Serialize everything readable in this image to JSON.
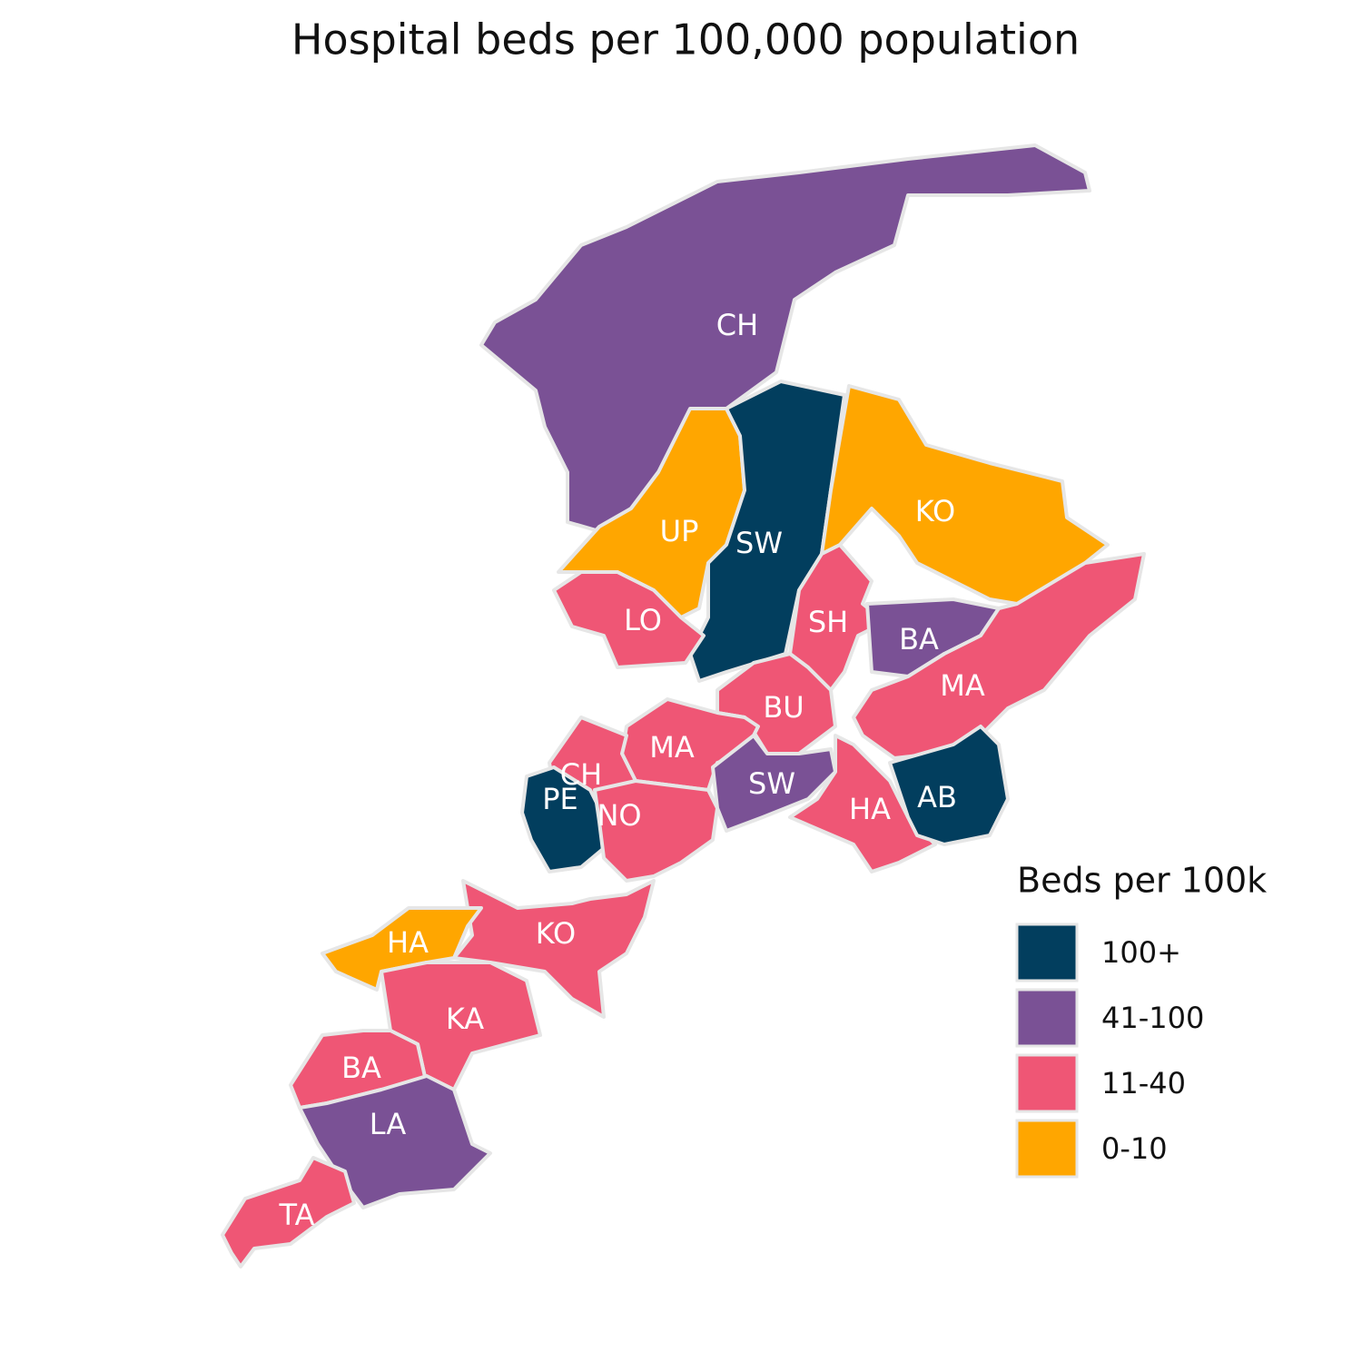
{
  "title": "Hospital beds per 100,000 population",
  "legend": {
    "title": "Beds per 100k",
    "items": [
      {
        "label": "100+",
        "color": "#023e5e"
      },
      {
        "label": "41-100",
        "color": "#7a5195"
      },
      {
        "label": "11-40",
        "color": "#ef5675"
      },
      {
        "label": "0-10",
        "color": "#ffa600"
      }
    ]
  },
  "regions": [
    {
      "label": "CH",
      "bin": "41-100"
    },
    {
      "label": "UP",
      "bin": "0-10"
    },
    {
      "label": "SW",
      "bin": "100+"
    },
    {
      "label": "KO",
      "bin": "0-10"
    },
    {
      "label": "LO",
      "bin": "11-40"
    },
    {
      "label": "SH",
      "bin": "11-40"
    },
    {
      "label": "BA",
      "bin": "41-100"
    },
    {
      "label": "MA",
      "bin": "11-40"
    },
    {
      "label": "BU",
      "bin": "11-40"
    },
    {
      "label": "MA",
      "bin": "11-40"
    },
    {
      "label": "CH",
      "bin": "11-40"
    },
    {
      "label": "PE",
      "bin": "100+"
    },
    {
      "label": "NO",
      "bin": "11-40"
    },
    {
      "label": "SW",
      "bin": "41-100"
    },
    {
      "label": "HA",
      "bin": "11-40"
    },
    {
      "label": "AB",
      "bin": "100+"
    },
    {
      "label": "KO",
      "bin": "11-40"
    },
    {
      "label": "HA",
      "bin": "0-10"
    },
    {
      "label": "KA",
      "bin": "11-40"
    },
    {
      "label": "BA",
      "bin": "11-40"
    },
    {
      "label": "LA",
      "bin": "41-100"
    },
    {
      "label": "TA",
      "bin": "11-40"
    }
  ]
}
